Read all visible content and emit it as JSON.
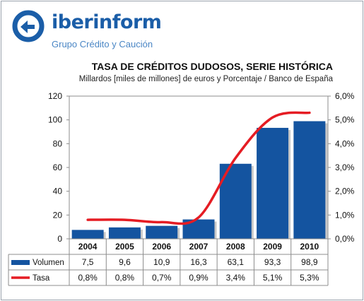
{
  "brand": {
    "name_part1": "iber",
    "name_part2": "inform",
    "tagline": "Grupo Crédito y Caución"
  },
  "colors": {
    "bar": "#1454a0",
    "line": "#e51c23",
    "brand": "#1b5ea8"
  },
  "chart_data": {
    "type": "bar",
    "title": "TASA DE CRÉDITOS DUDOSOS, SERIE HISTÓRICA",
    "subtitle": "Millardos [miles de millones] de euros y Porcentaje / Banco de España",
    "categories": [
      "2004",
      "2005",
      "2006",
      "2007",
      "2008",
      "2009",
      "2010"
    ],
    "series": [
      {
        "name": "Volumen",
        "type": "bar",
        "axis": "left",
        "values": [
          7.5,
          9.6,
          10.9,
          16.3,
          63.1,
          93.3,
          98.9
        ],
        "labels": [
          "7,5",
          "9,6",
          "10,9",
          "16,3",
          "63,1",
          "93,3",
          "98,9"
        ]
      },
      {
        "name": "Tasa",
        "type": "line",
        "axis": "right",
        "values": [
          0.8,
          0.8,
          0.7,
          0.9,
          3.4,
          5.1,
          5.3
        ],
        "labels": [
          "0,8%",
          "0,8%",
          "0,7%",
          "0,9%",
          "3,4%",
          "5,1%",
          "5,3%"
        ]
      }
    ],
    "y_left": {
      "min": 0,
      "max": 120,
      "ticks": [
        "0",
        "20",
        "40",
        "60",
        "80",
        "100",
        "120"
      ]
    },
    "y_right": {
      "min": 0,
      "max": 6,
      "ticks": [
        "0,0%",
        "1,0%",
        "2,0%",
        "3,0%",
        "4,0%",
        "5,0%",
        "6,0%"
      ]
    },
    "grid": false,
    "legend": "data-table"
  }
}
